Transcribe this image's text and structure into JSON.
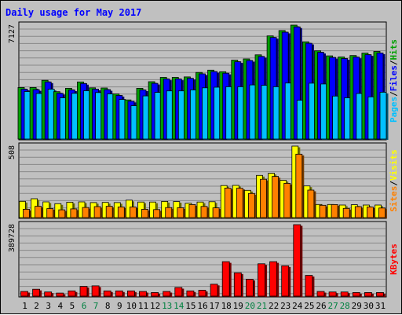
{
  "chart_data": {
    "type": "bar",
    "title": "Daily usage for May 2017",
    "days": [
      "1",
      "2",
      "3",
      "4",
      "5",
      "6",
      "7",
      "8",
      "9",
      "10",
      "11",
      "12",
      "13",
      "14",
      "15",
      "16",
      "17",
      "18",
      "19",
      "20",
      "21",
      "22",
      "23",
      "24",
      "25",
      "26",
      "27",
      "28",
      "29",
      "30",
      "31"
    ],
    "weekend_days": [
      "6",
      "7",
      "13",
      "14",
      "20",
      "21",
      "27",
      "28"
    ],
    "panels": [
      {
        "name": "hits-files-pages",
        "ymax_label": "7127",
        "ymax": 7127,
        "right_label": [
          "Pages",
          "/",
          "Files",
          "/",
          "Hits"
        ],
        "series": [
          {
            "name": "Hits",
            "color": "#00a000",
            "values": [
              3250,
              3250,
              3700,
              2990,
              3200,
              3600,
              3230,
              3220,
              2850,
              2480,
              3200,
              3610,
              3880,
              3880,
              3910,
              4190,
              4330,
              4230,
              4950,
              5030,
              5280,
              6460,
              6790,
              7127,
              6090,
              5530,
              5220,
              5150,
              5240,
              5390,
              5490
            ]
          },
          {
            "name": "Files",
            "color": "#0000ff",
            "values": [
              3150,
              3120,
              3600,
              2890,
              3100,
              3500,
              3150,
              3120,
              2760,
              2400,
              3100,
              3510,
              3780,
              3780,
              3820,
              4100,
              4240,
              4140,
              4850,
              4930,
              5180,
              6360,
              6690,
              7020,
              6000,
              5440,
              5120,
              5050,
              5140,
              5290,
              5400
            ]
          },
          {
            "name": "Pages",
            "color": "#00c0ff",
            "values": [
              3000,
              2880,
              3150,
              2610,
              2890,
              3050,
              2940,
              2850,
              2510,
              2120,
              2730,
              2950,
              3040,
              3040,
              3100,
              3230,
              3270,
              3300,
              3300,
              3410,
              3390,
              3300,
              3530,
              2460,
              3520,
              3470,
              2720,
              2610,
              2880,
              2670,
              2960
            ]
          }
        ]
      },
      {
        "name": "visits-sites",
        "ymax_label": "508",
        "ymax": 508,
        "right_label": [
          "Sites",
          "/",
          "Visits"
        ],
        "series": [
          {
            "name": "Visits",
            "color": "#ffff00",
            "values": [
              120,
              138,
              116,
              103,
              114,
              116,
              111,
              112,
              111,
              128,
              115,
              115,
              119,
              118,
              106,
              115,
              117,
              231,
              232,
              197,
              302,
              317,
              267,
              508,
              228,
              98,
              98,
              94,
              96,
              94,
              94
            ]
          },
          {
            "name": "Sites",
            "color": "#ff8000",
            "values": [
              64,
              85,
              69,
              60,
              67,
              77,
              83,
              85,
              80,
              80,
              64,
              62,
              76,
              75,
              97,
              84,
              74,
              213,
              212,
              175,
              275,
              295,
              246,
              451,
              199,
              92,
              97,
              70,
              83,
              80,
              73
            ]
          }
        ]
      },
      {
        "name": "kbytes",
        "ymax_label": "389728",
        "ymax": 389728,
        "right_label": [
          "KBytes"
        ],
        "series": [
          {
            "name": "KBytes",
            "color": "#ff0000",
            "values": [
              29800,
              41700,
              26800,
              20900,
              32800,
              56600,
              59600,
              32800,
              32800,
              32800,
              29800,
              23800,
              29800,
              50700,
              32800,
              35800,
              68600,
              190000,
              130000,
              95400,
              178900,
              190000,
              167600,
              389728,
              116200,
              29800,
              26800,
              26800,
              23800,
              23800,
              23800
            ]
          }
        ]
      }
    ]
  }
}
